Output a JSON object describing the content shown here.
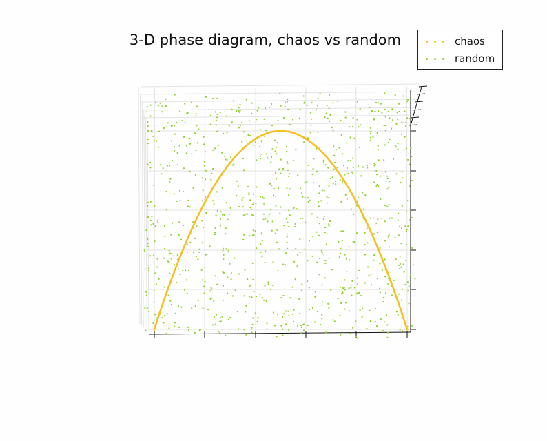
{
  "chart_data": {
    "type": "scatter",
    "title": "3-D phase diagram, chaos vs random",
    "xlabel": "",
    "ylabel": "",
    "zlabel": "",
    "grid": true,
    "legend_placement": "top-right",
    "colors": {
      "chaos": "#f5c021",
      "random": "#8fd12a",
      "grid": "#e3e3e3",
      "axis": "#111111"
    },
    "series": [
      {
        "name": "chaos",
        "kind": "logistic-map-orbit",
        "x": [
          0.0,
          0.02,
          0.05,
          0.1,
          0.15,
          0.2,
          0.25,
          0.3,
          0.35,
          0.4,
          0.45,
          0.5,
          0.55,
          0.6,
          0.65,
          0.7,
          0.75,
          0.8,
          0.85,
          0.9,
          0.95,
          0.98,
          1.0
        ],
        "y": [
          0.0,
          0.078,
          0.19,
          0.36,
          0.51,
          0.64,
          0.75,
          0.84,
          0.91,
          0.96,
          0.99,
          1.0,
          0.99,
          0.96,
          0.91,
          0.84,
          0.75,
          0.64,
          0.51,
          0.36,
          0.19,
          0.078,
          0.0
        ]
      },
      {
        "name": "random",
        "kind": "uniform-noise",
        "x_range": [
          0,
          1
        ],
        "y_range": [
          0,
          1
        ],
        "approx_count": 1000
      }
    ],
    "x_ticks": [
      "",
      "",
      "",
      "",
      "",
      ""
    ],
    "z_ticks": [
      "",
      "",
      "",
      "",
      "",
      ""
    ]
  }
}
